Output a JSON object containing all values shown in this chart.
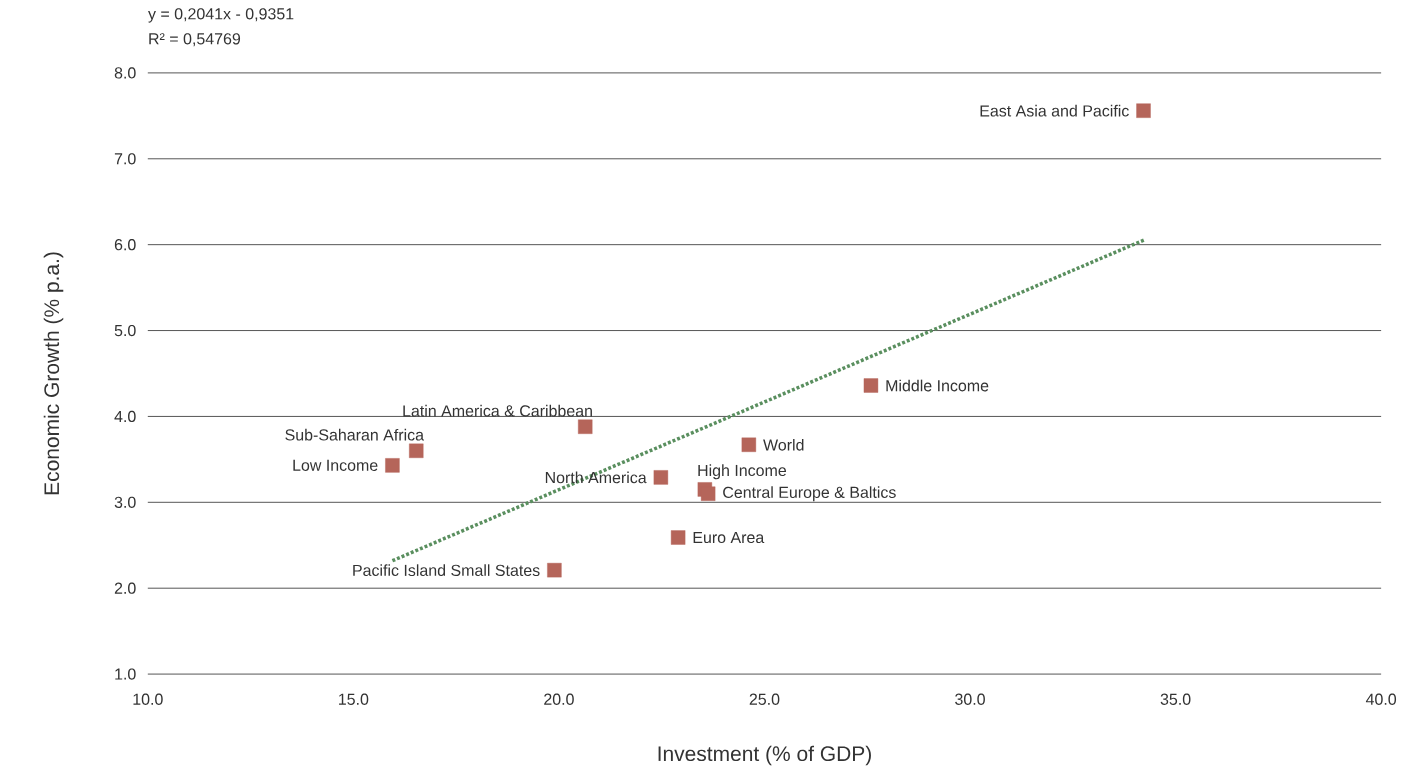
{
  "chart_data": {
    "type": "scatter",
    "xlabel": "Investment (% of GDP)",
    "ylabel": "Economic Growth (%  p.a.)",
    "series": [
      {
        "color": "#b5655a",
        "marker": "square",
        "x": [
          34.22,
          27.59,
          24.62,
          20.64,
          16.53,
          15.95,
          22.48,
          23.55,
          23.63,
          22.9,
          19.89
        ],
        "values": [
          7.56,
          4.36,
          3.67,
          3.88,
          3.6,
          3.43,
          3.29,
          3.15,
          3.1,
          2.59,
          2.21
        ]
      },
      {
        "type": "line",
        "color": "#5a8f5f",
        "line_style": "dotted",
        "x": [
          15.95,
          34.26
        ],
        "values": [
          2.32,
          6.06
        ]
      }
    ],
    "xlim": [
      10,
      40
    ],
    "ylim": [
      1,
      8
    ],
    "xticks": [
      {
        "value": 10,
        "label": "10.0"
      },
      {
        "value": 15,
        "label": "15.0"
      },
      {
        "value": 20,
        "label": "20.0"
      },
      {
        "value": 25,
        "label": "25.0"
      },
      {
        "value": 30,
        "label": "30.0"
      },
      {
        "value": 35,
        "label": "35.0"
      },
      {
        "value": 40,
        "label": "40.0"
      }
    ],
    "yticks": [
      {
        "value": 1,
        "label": "1.0"
      },
      {
        "value": 2,
        "label": "2.0"
      },
      {
        "value": 3,
        "label": "3.0"
      },
      {
        "value": 4,
        "label": "4.0"
      },
      {
        "value": 5,
        "label": "5.0"
      },
      {
        "value": 6,
        "label": "6.0"
      },
      {
        "value": 7,
        "label": "7.0"
      },
      {
        "value": 8,
        "label": "8.0"
      }
    ],
    "grid": "y",
    "annotations": [
      "y = 0,2041x - 0,9351",
      "R² = 0,54769",
      {
        "text": "East Asia and Pacific",
        "x": 34.22,
        "y": 7.56
      },
      {
        "text": "Middle Income",
        "x": 27.59,
        "y": 4.36
      },
      {
        "text": "World",
        "x": 24.62,
        "y": 3.67
      },
      {
        "text": "Latin America & Caribbean",
        "x": 20.64,
        "y": 3.88
      },
      {
        "text": "Sub-Saharan Africa",
        "x": 16.53,
        "y": 3.6
      },
      {
        "text": "Low Income",
        "x": 15.95,
        "y": 3.43
      },
      {
        "text": "North America",
        "x": 22.48,
        "y": 3.29
      },
      {
        "text": "High Income",
        "x": 23.55,
        "y": 3.15
      },
      {
        "text": "Central Europe & Baltics",
        "x": 23.63,
        "y": 3.1
      },
      {
        "text": "Euro Area",
        "x": 22.9,
        "y": 2.59
      },
      {
        "text": "Pacific Island Small States",
        "x": 19.89,
        "y": 2.21
      }
    ]
  }
}
